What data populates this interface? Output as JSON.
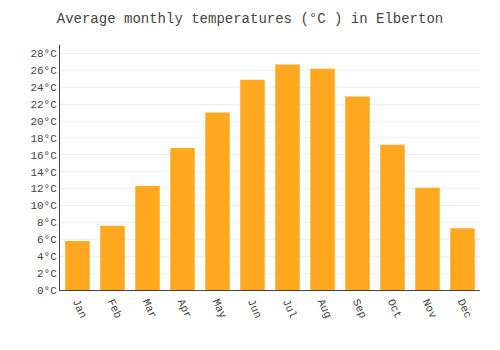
{
  "chart_data": {
    "type": "bar",
    "title": "Average monthly temperatures (°C ) in Elberton",
    "categories": [
      "Jan",
      "Feb",
      "Mar",
      "Apr",
      "May",
      "Jun",
      "Jul",
      "Aug",
      "Sep",
      "Oct",
      "Nov",
      "Dec"
    ],
    "values": [
      5.8,
      7.6,
      12.3,
      16.8,
      21.0,
      24.9,
      26.7,
      26.2,
      22.9,
      17.2,
      12.1,
      7.3
    ],
    "color": "#FFA820",
    "ylim": [
      0,
      29
    ],
    "yticks": [
      {
        "value": 0,
        "label": "0°C"
      },
      {
        "value": 2,
        "label": "2°C"
      },
      {
        "value": 4,
        "label": "4°C"
      },
      {
        "value": 6,
        "label": "6°C"
      },
      {
        "value": 8,
        "label": "8°C"
      },
      {
        "value": 10,
        "label": "10°C"
      },
      {
        "value": 12,
        "label": "12°C"
      },
      {
        "value": 14,
        "label": "14°C"
      },
      {
        "value": 16,
        "label": "16°C"
      },
      {
        "value": 18,
        "label": "18°C"
      },
      {
        "value": 20,
        "label": "20°C"
      },
      {
        "value": 22,
        "label": "22°C"
      },
      {
        "value": 24,
        "label": "24°C"
      },
      {
        "value": 26,
        "label": "26°C"
      },
      {
        "value": 28,
        "label": "28°C"
      }
    ],
    "grid": true
  }
}
